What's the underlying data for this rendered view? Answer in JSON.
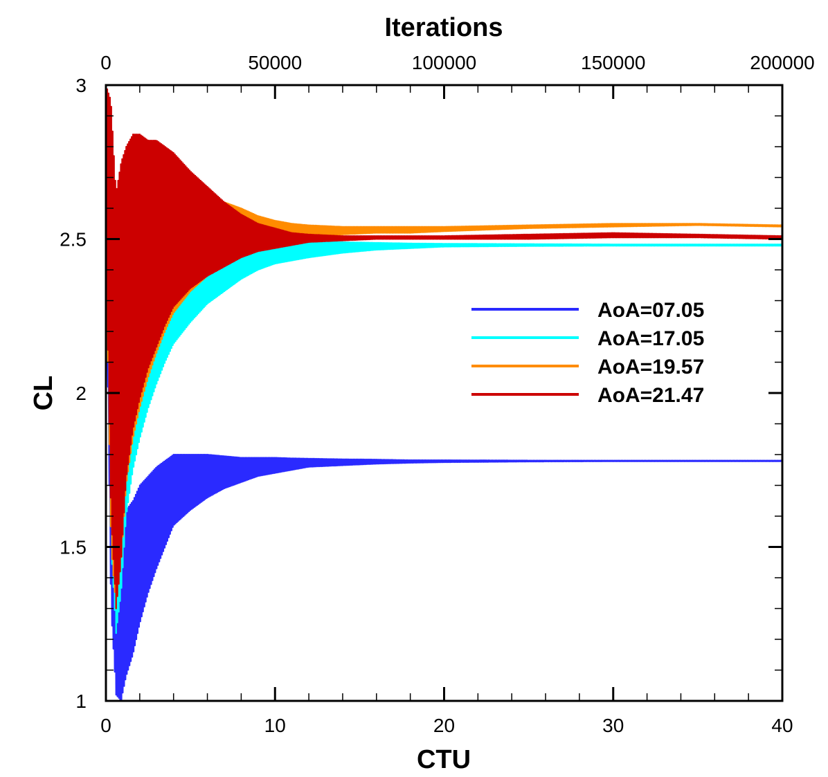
{
  "chart_data": {
    "type": "line",
    "xlabel": "CTU",
    "ylabel": "CL",
    "x2label": "Iterations",
    "xlim": [
      0,
      40
    ],
    "ylim": [
      1,
      3
    ],
    "x2lim": [
      0,
      200000
    ],
    "xticks": [
      0,
      10,
      20,
      30,
      40
    ],
    "yticks": [
      1,
      1.5,
      2,
      2.5,
      3
    ],
    "x2ticks": [
      0,
      50000,
      100000,
      150000,
      200000
    ],
    "xtick_labels": [
      "0",
      "10",
      "20",
      "30",
      "40"
    ],
    "ytick_labels": [
      "1",
      "1.5",
      "2",
      "2.5",
      "3"
    ],
    "x2tick_labels": [
      "0",
      "50000",
      "100000",
      "150000",
      "200000"
    ],
    "grid": false,
    "legend_position": "center-right",
    "series": [
      {
        "name": "AoA=07.05",
        "color": "#2a2aff",
        "x": [
          0,
          0.3,
          0.6,
          0.9,
          1.2,
          1.6,
          2,
          2.5,
          3,
          3.5,
          4,
          5,
          6,
          7,
          8,
          9,
          10,
          11,
          12,
          14,
          16,
          18,
          20,
          25,
          30,
          35,
          40
        ],
        "lower": [
          2.5,
          1.3,
          1.02,
          1.0,
          1.08,
          1.15,
          1.25,
          1.35,
          1.43,
          1.5,
          1.57,
          1.62,
          1.66,
          1.69,
          1.71,
          1.73,
          1.74,
          1.75,
          1.76,
          1.765,
          1.77,
          1.773,
          1.775,
          1.777,
          1.778,
          1.778,
          1.778
        ],
        "upper": [
          2.5,
          1.6,
          1.45,
          1.55,
          1.62,
          1.65,
          1.7,
          1.73,
          1.76,
          1.78,
          1.8,
          1.8,
          1.8,
          1.795,
          1.79,
          1.79,
          1.79,
          1.788,
          1.787,
          1.785,
          1.784,
          1.782,
          1.782,
          1.781,
          1.781,
          1.781,
          1.781
        ]
      },
      {
        "name": "AoA=17.05",
        "color": "#00ffff",
        "x": [
          0,
          0.3,
          0.6,
          0.9,
          1.2,
          1.6,
          2,
          2.5,
          3,
          3.5,
          4,
          5,
          6,
          7,
          8,
          9,
          10,
          11,
          12,
          14,
          16,
          18,
          20,
          25,
          30,
          35,
          40
        ],
        "lower": [
          2.5,
          1.5,
          1.22,
          1.35,
          1.6,
          1.75,
          1.85,
          1.95,
          2.03,
          2.1,
          2.16,
          2.23,
          2.29,
          2.33,
          2.37,
          2.4,
          2.42,
          2.43,
          2.44,
          2.455,
          2.465,
          2.47,
          2.475,
          2.477,
          2.478,
          2.478,
          2.478
        ],
        "upper": [
          2.5,
          2.35,
          2.3,
          2.4,
          2.45,
          2.48,
          2.5,
          2.52,
          2.54,
          2.55,
          2.55,
          2.55,
          2.54,
          2.53,
          2.52,
          2.51,
          2.505,
          2.5,
          2.495,
          2.49,
          2.488,
          2.486,
          2.485,
          2.484,
          2.483,
          2.483,
          2.483
        ]
      },
      {
        "name": "AoA=19.57",
        "color": "#ff8c00",
        "x": [
          0,
          0.3,
          0.6,
          0.9,
          1.2,
          1.6,
          2,
          2.5,
          3,
          3.5,
          4,
          5,
          6,
          7,
          8,
          9,
          10,
          11,
          12,
          14,
          16,
          18,
          20,
          25,
          30,
          35,
          40
        ],
        "lower": [
          2.5,
          1.5,
          1.3,
          1.45,
          1.7,
          1.85,
          1.95,
          2.05,
          2.13,
          2.2,
          2.26,
          2.33,
          2.38,
          2.42,
          2.45,
          2.47,
          2.49,
          2.5,
          2.51,
          2.515,
          2.52,
          2.52,
          2.525,
          2.535,
          2.54,
          2.545,
          2.54
        ],
        "upper": [
          2.5,
          2.6,
          2.55,
          2.6,
          2.65,
          2.68,
          2.7,
          2.72,
          2.73,
          2.72,
          2.7,
          2.68,
          2.65,
          2.62,
          2.6,
          2.575,
          2.56,
          2.55,
          2.545,
          2.54,
          2.54,
          2.54,
          2.54,
          2.545,
          2.55,
          2.55,
          2.545
        ]
      },
      {
        "name": "AoA=21.47",
        "color": "#cc0000",
        "x": [
          0,
          0.3,
          0.6,
          0.9,
          1.2,
          1.6,
          2,
          2.5,
          3,
          3.5,
          4,
          5,
          6,
          7,
          8,
          9,
          10,
          11,
          12,
          14,
          16,
          18,
          20,
          25,
          30,
          35,
          40
        ],
        "lower": [
          2.5,
          1.6,
          1.3,
          1.45,
          1.72,
          1.88,
          1.98,
          2.08,
          2.15,
          2.22,
          2.28,
          2.34,
          2.38,
          2.41,
          2.44,
          2.46,
          2.47,
          2.48,
          2.49,
          2.495,
          2.5,
          2.5,
          2.5,
          2.5,
          2.505,
          2.505,
          2.5
        ],
        "upper": [
          3.0,
          2.95,
          2.65,
          2.75,
          2.8,
          2.84,
          2.84,
          2.82,
          2.82,
          2.8,
          2.78,
          2.72,
          2.67,
          2.62,
          2.58,
          2.55,
          2.535,
          2.52,
          2.515,
          2.51,
          2.51,
          2.51,
          2.51,
          2.515,
          2.52,
          2.515,
          2.51
        ]
      }
    ]
  }
}
